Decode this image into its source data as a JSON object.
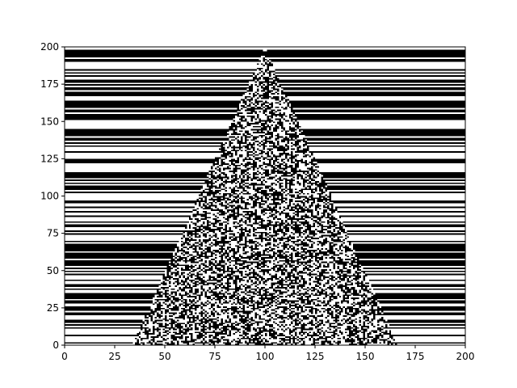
{
  "chart_data": {
    "type": "heatmap",
    "description_of_values": "binary cellular-automaton image (0 = black, 1 = white) on a 200x200 grid",
    "colormap": {
      "0": "#000000",
      "1": "#ffffff"
    },
    "grid": false,
    "xlim": [
      0,
      200
    ],
    "ylim": [
      0,
      200
    ],
    "x_ticks": [
      0,
      25,
      50,
      75,
      100,
      125,
      150,
      175,
      200
    ],
    "y_ticks": [
      0,
      25,
      50,
      75,
      100,
      125,
      150,
      175,
      200
    ],
    "x_tick_labels": [
      "0",
      "25",
      "50",
      "75",
      "100",
      "125",
      "150",
      "175",
      "200"
    ],
    "y_tick_labels": [
      "0",
      "25",
      "50",
      "75",
      "100",
      "125",
      "150",
      "175",
      "200"
    ],
    "triangle_region": {
      "apex": [
        100,
        200
      ],
      "base_left": [
        34,
        0
      ],
      "base_right": [
        166,
        0
      ],
      "pattern": "random speckle"
    },
    "outside_region_pattern": "horizontal stripes (each row uniformly black or white)"
  }
}
